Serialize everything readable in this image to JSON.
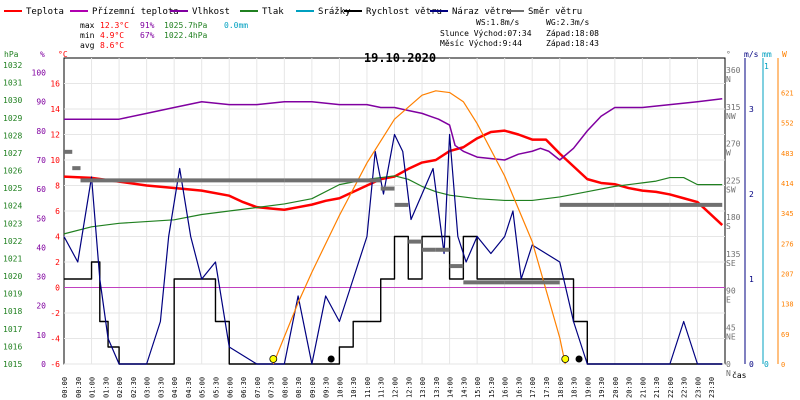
{
  "title": "19.10.2020",
  "legend": [
    {
      "label": "Teplota",
      "color": "#ff0000"
    },
    {
      "label": "Přízemní teplota",
      "color": "#b000b0"
    },
    {
      "label": "Vlhkost",
      "color": "#8000a0"
    },
    {
      "label": "Tlak",
      "color": "#208020"
    },
    {
      "label": "Srážky",
      "color": "#00a0c0"
    },
    {
      "label": "Rychlost větru",
      "color": "#000000"
    },
    {
      "label": "Náraz větru",
      "color": "#000080"
    },
    {
      "label": "Směr větru",
      "color": "#707070"
    }
  ],
  "stats": {
    "max": {
      "label": "max",
      "temp": "12.3°C",
      "hum": "91%",
      "press": "1025.7hPa",
      "rain": "0.0mm"
    },
    "min": {
      "label": "min",
      "temp": "4.9°C",
      "hum": "67%",
      "press": "1022.4hPa"
    },
    "avg": {
      "label": "avg",
      "temp": "8.6°C"
    }
  },
  "info": {
    "ws": "WS:1.8m/s",
    "wg": "WG:2.3m/s",
    "sun": "Slunce Východ:07:34",
    "sun_set": "Západ:18:08",
    "moon": "Měsíc Východ:9:44",
    "moon_set": "Západ:18:43"
  },
  "axes": {
    "hpa": {
      "unit": "hPa",
      "ticks": [
        1015,
        1016,
        1017,
        1018,
        1019,
        1020,
        1021,
        1022,
        1023,
        1024,
        1025,
        1026,
        1027,
        1028,
        1029,
        1030,
        1031,
        1032
      ]
    },
    "pct": {
      "unit": "%",
      "ticks": [
        0,
        10,
        20,
        30,
        40,
        50,
        60,
        70,
        80,
        90,
        100
      ]
    },
    "temp": {
      "unit": "°C",
      "ticks": [
        -6,
        -4,
        -2,
        0,
        2,
        4,
        6,
        8,
        10,
        12,
        14,
        16
      ]
    },
    "dir": {
      "unit": "°",
      "ticks": [
        "0",
        "45",
        "90",
        "135",
        "180",
        "225",
        "270",
        "315",
        "360"
      ],
      "labels": [
        "N",
        "NE",
        "E",
        "SE",
        "S",
        "SW",
        "W",
        "NW",
        "N"
      ]
    },
    "ms": {
      "unit": "m/s",
      "ticks": [
        "0",
        "1",
        "2",
        "3"
      ]
    },
    "mm": {
      "unit": "mm",
      "ticks": [
        "0",
        "1"
      ]
    },
    "wm2": {
      "unit": "W",
      "ticks": [
        "0",
        "69",
        "138",
        "207",
        "276",
        "345",
        "414",
        "483",
        "552",
        "621"
      ]
    },
    "time_label": "čas",
    "time_ticks": [
      "00:00",
      "00:30",
      "01:00",
      "01:30",
      "02:00",
      "02:30",
      "03:00",
      "03:30",
      "04:00",
      "04:30",
      "05:00",
      "05:30",
      "06:00",
      "06:30",
      "07:00",
      "07:30",
      "08:00",
      "08:30",
      "09:00",
      "09:30",
      "10:00",
      "10:30",
      "11:00",
      "11:30",
      "12:00",
      "12:30",
      "13:00",
      "13:30",
      "14:00",
      "14:30",
      "15:00",
      "15:30",
      "16:00",
      "16:30",
      "17:00",
      "17:30",
      "18:00",
      "18:30",
      "19:00",
      "19:30",
      "20:00",
      "20:30",
      "21:00",
      "21:30",
      "22:00",
      "22:30",
      "23:00",
      "23:30"
    ]
  },
  "chart_data": {
    "type": "line",
    "title": "19.10.2020",
    "x_unit": "hours",
    "xlim": [
      0,
      24
    ],
    "series": [
      {
        "name": "Teplota",
        "unit": "°C",
        "color": "#ff0000",
        "x": [
          0,
          1,
          2,
          3,
          4,
          5,
          6,
          6.5,
          7,
          7.5,
          8,
          8.5,
          9,
          9.5,
          10,
          10.5,
          11,
          11.5,
          12,
          12.5,
          13,
          13.5,
          14,
          14.5,
          15,
          15.5,
          16,
          16.5,
          17,
          17.5,
          18,
          18.5,
          19,
          19.5,
          20,
          20.5,
          21,
          21.5,
          22,
          22.5,
          23,
          23.5,
          23.9
        ],
        "y": [
          8.7,
          8.6,
          8.3,
          8.0,
          7.8,
          7.6,
          7.2,
          6.7,
          6.3,
          6.2,
          6.1,
          6.3,
          6.5,
          6.8,
          7.0,
          7.5,
          8.0,
          8.5,
          8.7,
          9.3,
          9.8,
          10.0,
          10.7,
          11.0,
          11.7,
          12.2,
          12.3,
          12.0,
          11.6,
          11.6,
          10.5,
          9.5,
          8.5,
          8.2,
          8.1,
          7.8,
          7.6,
          7.5,
          7.3,
          7.0,
          6.7,
          5.7,
          4.9
        ]
      },
      {
        "name": "Vlhkost",
        "unit": "%",
        "color": "#8000a0",
        "x": [
          0,
          1,
          2,
          3,
          4,
          5,
          6,
          6.5,
          7,
          8,
          9,
          10,
          11,
          11.5,
          12,
          12.5,
          13,
          13.3,
          13.6,
          14,
          14.2,
          14.5,
          15,
          16,
          16.5,
          17,
          17.3,
          17.6,
          18,
          18.5,
          19,
          19.5,
          20,
          21,
          22,
          23,
          23.9
        ],
        "y": [
          84,
          84,
          84,
          86,
          88,
          90,
          89,
          89,
          89,
          90,
          90,
          89,
          89,
          88,
          88,
          87,
          86,
          85,
          84,
          82,
          75,
          73,
          71,
          70,
          72,
          73,
          74,
          73,
          70,
          74,
          80,
          85,
          88,
          88,
          89,
          90,
          91
        ]
      },
      {
        "name": "Tlak",
        "unit": "hPa",
        "color": "#208020",
        "x": [
          0,
          1,
          2,
          3,
          4,
          5,
          6,
          7,
          8,
          9,
          10,
          11,
          11.5,
          12,
          12.5,
          13,
          13.5,
          14,
          14.5,
          15,
          16,
          17,
          18,
          19,
          20,
          21,
          21.5,
          22,
          22.5,
          23,
          23.9
        ],
        "y": [
          1022.4,
          1022.8,
          1023.0,
          1023.1,
          1023.2,
          1023.5,
          1023.7,
          1023.9,
          1024.1,
          1024.4,
          1025.2,
          1025.5,
          1025.6,
          1025.7,
          1025.5,
          1025.1,
          1024.8,
          1024.6,
          1024.5,
          1024.4,
          1024.3,
          1024.3,
          1024.5,
          1024.8,
          1025.1,
          1025.3,
          1025.4,
          1025.6,
          1025.6,
          1025.2,
          1025.2
        ]
      },
      {
        "name": "Rychlost větru",
        "unit": "m/s",
        "color": "#000000",
        "x": [
          0,
          0.5,
          1,
          1.3,
          1.6,
          2,
          3,
          3.5,
          4,
          4.5,
          5,
          5.5,
          6,
          7,
          8,
          9,
          9.5,
          10,
          10.5,
          11,
          11.5,
          12,
          12.5,
          13,
          13.5,
          14,
          14.5,
          15,
          15.5,
          16,
          16.5,
          17,
          17.5,
          18,
          18.5,
          19,
          20,
          21,
          22,
          23,
          23.9
        ],
        "y": [
          1,
          1,
          1.2,
          0.5,
          0.2,
          0,
          0,
          0,
          1,
          1,
          1,
          0.5,
          0,
          0,
          0,
          0,
          0,
          0.2,
          0.5,
          0.5,
          1,
          1.5,
          1,
          1.5,
          1.5,
          1,
          1.5,
          1,
          1,
          1,
          1,
          1,
          1,
          1,
          0.5,
          0,
          0,
          0,
          0,
          0,
          0
        ]
      },
      {
        "name": "Náraz větru",
        "unit": "m/s",
        "color": "#000080",
        "x": [
          0,
          0.5,
          1,
          1.3,
          1.6,
          2,
          3,
          3.5,
          3.8,
          4.2,
          4.6,
          5,
          5.5,
          6,
          7,
          8,
          8.5,
          9,
          9.5,
          10,
          10.5,
          11,
          11.3,
          11.6,
          12,
          12.3,
          12.6,
          13,
          13.4,
          13.8,
          14,
          14.3,
          14.6,
          15,
          15.5,
          16,
          16.3,
          16.6,
          17,
          17.5,
          18,
          18.5,
          19,
          20,
          21,
          22,
          22.5,
          23,
          23.9
        ],
        "y": [
          1.5,
          1.2,
          2.2,
          1,
          0.3,
          0,
          0,
          0.5,
          1.5,
          2.3,
          1.5,
          1,
          1.2,
          0.2,
          0,
          0,
          0.8,
          0,
          0.8,
          0.5,
          1,
          1.5,
          2.5,
          2,
          2.7,
          2.5,
          1.7,
          2,
          2.3,
          1.3,
          2.7,
          1.5,
          1.2,
          1.5,
          1.3,
          1.5,
          1.8,
          1,
          1.4,
          1.3,
          1.2,
          0.5,
          0,
          0,
          0,
          0,
          0.5,
          0,
          0
        ]
      },
      {
        "name": "Směr větru",
        "unit": "°",
        "color": "#707070",
        "x": [
          0,
          0.3,
          0.6,
          4,
          8,
          11.5,
          12,
          12.5,
          13,
          13.5,
          14,
          14.5,
          16,
          17.5,
          18,
          20,
          22,
          23.9
        ],
        "y": [
          260,
          240,
          225,
          225,
          225,
          215,
          195,
          150,
          140,
          140,
          120,
          100,
          100,
          100,
          195,
          195,
          195,
          195
        ]
      },
      {
        "name": "Sluneční záření",
        "unit": "W/m²",
        "color": "#ff8000",
        "x": [
          7.6,
          8.5,
          9,
          10,
          11,
          12,
          13,
          13.5,
          14,
          14.5,
          15,
          16,
          17,
          18,
          18.2
        ],
        "y": [
          0,
          140,
          210,
          340,
          460,
          560,
          615,
          625,
          621,
          600,
          550,
          430,
          280,
          60,
          0
        ]
      }
    ],
    "yranges": {
      "temp": [
        -6,
        18
      ],
      "pct": [
        0,
        105
      ],
      "hpa": [
        1015,
        1032.4
      ],
      "dir": [
        0,
        375
      ],
      "ms": [
        0,
        3.6
      ],
      "wm2": [
        0,
        700
      ]
    }
  }
}
